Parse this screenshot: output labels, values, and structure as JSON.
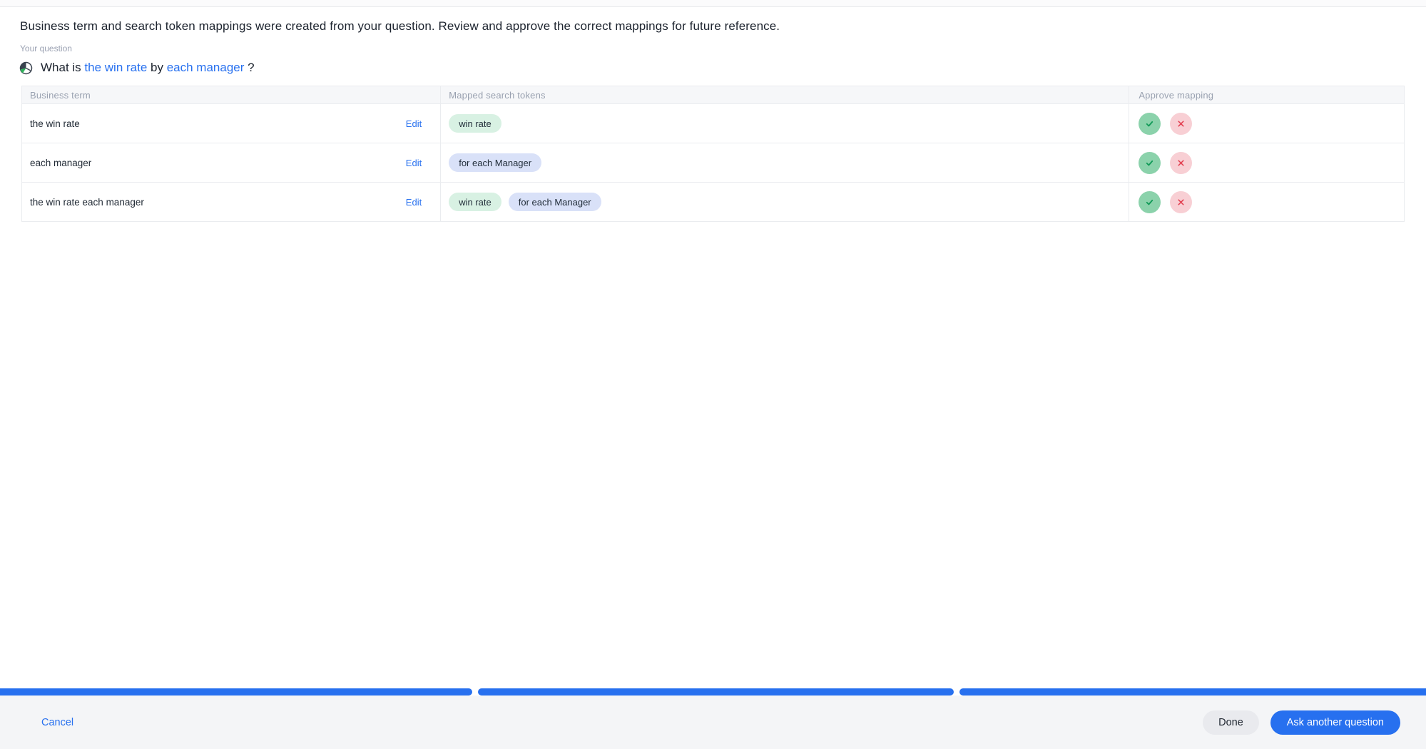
{
  "colors": {
    "accent_blue": "#2770ef",
    "chip_green_bg": "#d8f1e3",
    "chip_blue_bg": "#d9e1f8",
    "approve_circle_green": "#8bd2ab",
    "approve_check_green": "#119a57",
    "reject_circle_pink": "#f8cfd4",
    "reject_cross_red": "#e23c4d",
    "header_row_bg": "#f6f7f9",
    "footer_bg": "#f4f5f7"
  },
  "header": {
    "message": "Business term and search token mappings were created from your question. Review and approve the correct mappings for future reference."
  },
  "question": {
    "label": "Your question",
    "icon": "globe-icon",
    "segments": [
      {
        "text": "What is ",
        "highlight": false
      },
      {
        "text": "the win rate",
        "highlight": true
      },
      {
        "text": " by ",
        "highlight": false
      },
      {
        "text": "each manager",
        "highlight": true
      },
      {
        "text": " ?",
        "highlight": false
      }
    ]
  },
  "table": {
    "columns": [
      "Business term",
      "Mapped search tokens",
      "Approve mapping"
    ],
    "rows": [
      {
        "term": "the win rate",
        "edit_label": "Edit",
        "tokens": [
          {
            "label": "win rate",
            "color": "green"
          }
        ]
      },
      {
        "term": "each manager",
        "edit_label": "Edit",
        "tokens": [
          {
            "label": "for each Manager",
            "color": "blue"
          }
        ]
      },
      {
        "term": "the win rate each manager",
        "edit_label": "Edit",
        "tokens": [
          {
            "label": "win rate",
            "color": "green"
          },
          {
            "label": "for each Manager",
            "color": "blue"
          }
        ]
      }
    ]
  },
  "progress": {
    "segment_count": 3
  },
  "footer": {
    "cancel_label": "Cancel",
    "done_label": "Done",
    "ask_label": "Ask another question"
  }
}
